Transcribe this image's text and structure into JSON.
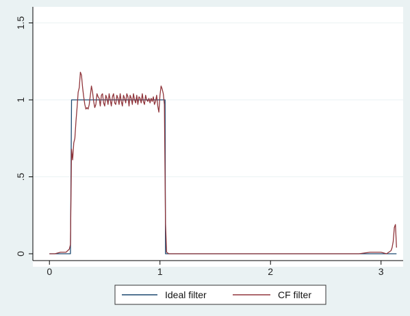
{
  "chart_data": {
    "type": "line",
    "title": "",
    "xlabel": "",
    "ylabel": "",
    "xlim": [
      -0.15,
      3.2
    ],
    "ylim": [
      0,
      1.5
    ],
    "x_ticks": [
      {
        "value": 0,
        "label": "0"
      },
      {
        "value": 1,
        "label": "1"
      },
      {
        "value": 2,
        "label": "2"
      },
      {
        "value": 3,
        "label": "3"
      }
    ],
    "y_ticks": [
      {
        "value": 0,
        "label": "0"
      },
      {
        "value": 0.5,
        "label": ".5"
      },
      {
        "value": 1,
        "label": "1"
      },
      {
        "value": 1.5,
        "label": "1.5"
      }
    ],
    "grid": "horizontal",
    "legend_position": "bottom",
    "series": [
      {
        "name": "Ideal filter",
        "color": "#1a476f",
        "x": [
          0,
          0.19,
          0.2,
          1.046,
          1.05,
          3.14
        ],
        "y": [
          0,
          0,
          1,
          1,
          0,
          0
        ]
      },
      {
        "name": "CF filter",
        "color": "#90353b",
        "x": [
          0,
          0.05,
          0.1,
          0.15,
          0.18,
          0.19,
          0.2,
          0.21,
          0.22,
          0.23,
          0.24,
          0.25,
          0.26,
          0.27,
          0.28,
          0.29,
          0.3,
          0.31,
          0.32,
          0.33,
          0.34,
          0.35,
          0.36,
          0.37,
          0.38,
          0.39,
          0.4,
          0.41,
          0.42,
          0.43,
          0.44,
          0.45,
          0.46,
          0.47,
          0.48,
          0.49,
          0.5,
          0.51,
          0.52,
          0.53,
          0.54,
          0.55,
          0.56,
          0.57,
          0.58,
          0.59,
          0.6,
          0.61,
          0.62,
          0.63,
          0.64,
          0.65,
          0.66,
          0.67,
          0.68,
          0.69,
          0.7,
          0.71,
          0.72,
          0.73,
          0.74,
          0.75,
          0.76,
          0.77,
          0.78,
          0.79,
          0.8,
          0.81,
          0.82,
          0.83,
          0.84,
          0.85,
          0.86,
          0.87,
          0.88,
          0.89,
          0.9,
          0.91,
          0.92,
          0.93,
          0.94,
          0.95,
          0.96,
          0.97,
          0.98,
          0.99,
          1.0,
          1.01,
          1.02,
          1.03,
          1.04,
          1.05,
          1.06,
          1.08,
          1.2,
          2.0,
          2.8,
          2.9,
          2.95,
          3.0,
          3.05,
          3.07,
          3.09,
          3.1,
          3.11,
          3.12,
          3.13,
          3.14
        ],
        "y": [
          0,
          0,
          0.01,
          0.01,
          0.03,
          0.06,
          0.68,
          0.61,
          0.72,
          0.75,
          0.86,
          0.95,
          1.05,
          1.08,
          1.18,
          1.16,
          1.08,
          1.02,
          0.97,
          0.94,
          0.95,
          0.94,
          0.97,
          1.03,
          1.09,
          1.05,
          0.99,
          0.95,
          0.97,
          1.04,
          1.02,
          1.01,
          0.96,
          1.03,
          1.04,
          0.98,
          0.96,
          1.03,
          1.01,
          0.97,
          1.04,
          1.0,
          0.96,
          1.02,
          1.04,
          0.98,
          0.97,
          1.03,
          1.01,
          0.97,
          1.04,
          0.99,
          0.96,
          1.03,
          1.01,
          0.98,
          1.04,
          1.02,
          0.96,
          1.03,
          1.01,
          0.97,
          1.04,
          1.0,
          0.98,
          1.03,
          0.97,
          1.02,
          1.01,
          0.98,
          1.04,
          0.99,
          0.97,
          1.03,
          1.0,
          0.99,
          1.01,
          0.98,
          1.01,
          0.99,
          1.02,
          0.97,
          0.99,
          1.03,
          0.96,
          0.92,
          1.03,
          1.09,
          1.07,
          1.04,
          0.97,
          0.2,
          0.01,
          0,
          0,
          0,
          0,
          0.01,
          0.01,
          0.01,
          0,
          0.01,
          0.02,
          0.04,
          0.08,
          0.17,
          0.19,
          0.04
        ]
      }
    ]
  }
}
